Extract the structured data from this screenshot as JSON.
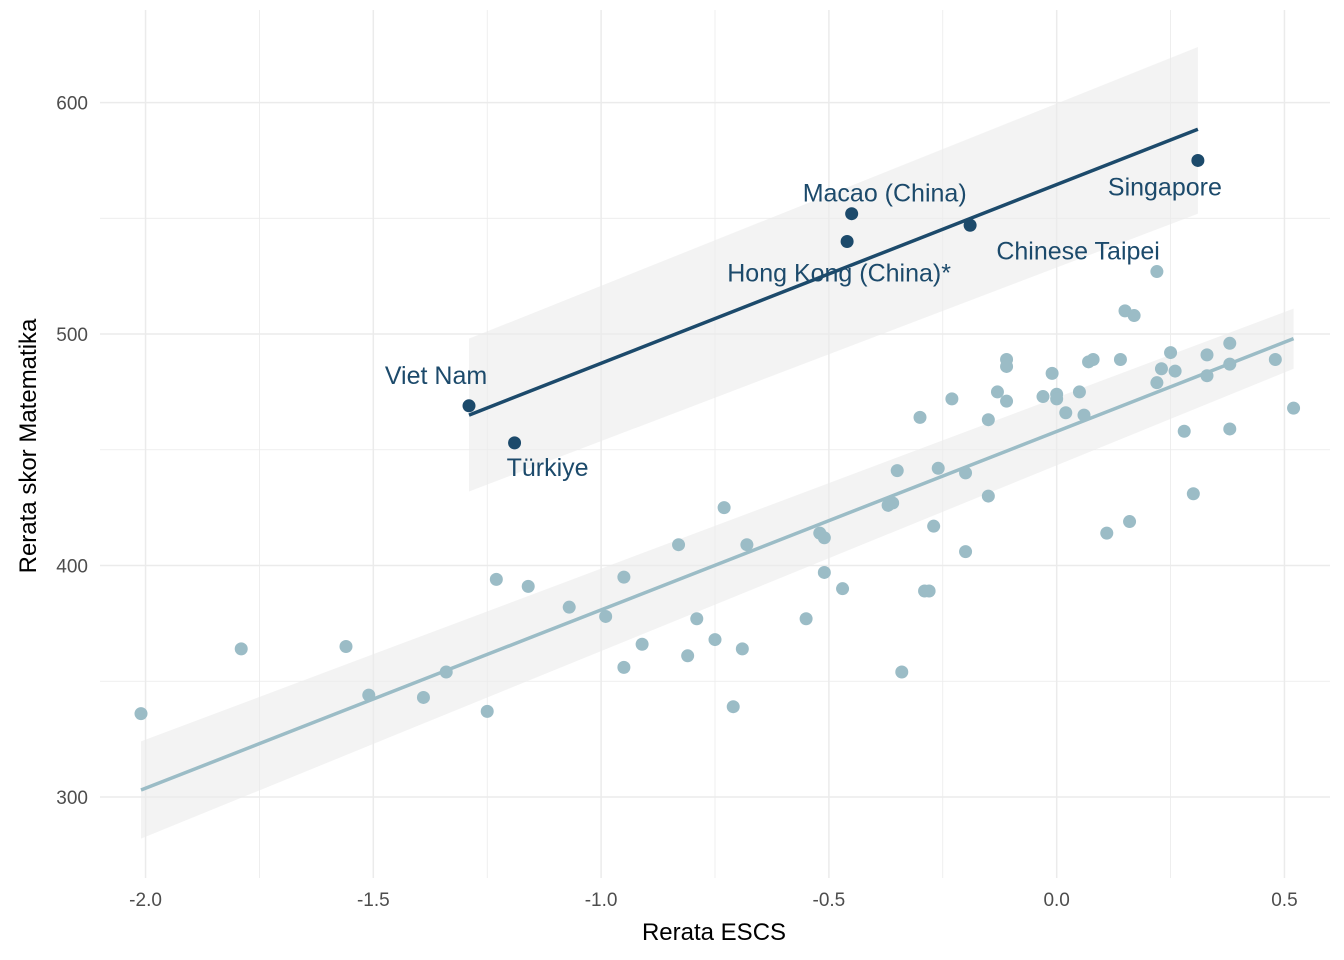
{
  "chart_data": {
    "type": "scatter",
    "xlabel": "Rerata ESCS",
    "ylabel": "Rerata skor Matematika",
    "xlim": [
      -2.1,
      0.6
    ],
    "ylim": [
      265,
      640
    ],
    "xticks": [
      -2.0,
      -1.5,
      -1.0,
      -0.5,
      0.0,
      0.5
    ],
    "xtick_labels": [
      "-2.0",
      "-1.5",
      "-1.0",
      "-0.5",
      "0.0",
      "0.5"
    ],
    "yticks": [
      300,
      400,
      500,
      600
    ],
    "ytick_labels": [
      "300",
      "400",
      "500",
      "600"
    ],
    "grid": true,
    "legend": "none",
    "colors": {
      "highlight": "#1c4a6b",
      "other": "#9bbcc6",
      "band": "#ebebeb",
      "grid": "#ebebeb"
    },
    "series": [
      {
        "color": "#1c4a6b",
        "points": [
          {
            "x": -1.29,
            "y": 469,
            "label": "Viet Nam"
          },
          {
            "x": -1.19,
            "y": 453,
            "label": "Türkiye"
          },
          {
            "x": -0.45,
            "y": 552,
            "label": "Macao (China)"
          },
          {
            "x": -0.46,
            "y": 540,
            "label": "Hong Kong (China)*"
          },
          {
            "x": -0.19,
            "y": 547,
            "label": "Chinese Taipei"
          },
          {
            "x": 0.31,
            "y": 575,
            "label": "Singapore"
          }
        ],
        "trend": {
          "x": [
            -1.29,
            0.31
          ],
          "y": [
            465,
            588.5
          ],
          "ci_lower": [
            432,
            552
          ],
          "ci_upper": [
            498,
            624
          ]
        }
      },
      {
        "color": "#9bbcc6",
        "points": [
          {
            "x": -2.01,
            "y": 336
          },
          {
            "x": -1.79,
            "y": 364
          },
          {
            "x": -1.56,
            "y": 365
          },
          {
            "x": -1.51,
            "y": 344
          },
          {
            "x": -1.39,
            "y": 343
          },
          {
            "x": -1.34,
            "y": 354
          },
          {
            "x": -1.25,
            "y": 337
          },
          {
            "x": -1.23,
            "y": 394
          },
          {
            "x": -1.16,
            "y": 391
          },
          {
            "x": -1.07,
            "y": 382
          },
          {
            "x": -0.99,
            "y": 378
          },
          {
            "x": -0.95,
            "y": 395
          },
          {
            "x": -0.95,
            "y": 356
          },
          {
            "x": -0.91,
            "y": 366
          },
          {
            "x": -0.83,
            "y": 409
          },
          {
            "x": -0.81,
            "y": 361
          },
          {
            "x": -0.79,
            "y": 377
          },
          {
            "x": -0.75,
            "y": 368
          },
          {
            "x": -0.73,
            "y": 425
          },
          {
            "x": -0.71,
            "y": 339
          },
          {
            "x": -0.69,
            "y": 364
          },
          {
            "x": -0.68,
            "y": 409
          },
          {
            "x": -0.55,
            "y": 377
          },
          {
            "x": -0.52,
            "y": 414
          },
          {
            "x": -0.51,
            "y": 412
          },
          {
            "x": -0.51,
            "y": 397
          },
          {
            "x": -0.47,
            "y": 390
          },
          {
            "x": -0.37,
            "y": 426
          },
          {
            "x": -0.36,
            "y": 427
          },
          {
            "x": -0.35,
            "y": 441
          },
          {
            "x": -0.34,
            "y": 354
          },
          {
            "x": -0.3,
            "y": 464
          },
          {
            "x": -0.29,
            "y": 389
          },
          {
            "x": -0.28,
            "y": 389
          },
          {
            "x": -0.27,
            "y": 417
          },
          {
            "x": -0.26,
            "y": 442
          },
          {
            "x": -0.23,
            "y": 472
          },
          {
            "x": -0.2,
            "y": 440
          },
          {
            "x": -0.2,
            "y": 406
          },
          {
            "x": -0.15,
            "y": 463
          },
          {
            "x": -0.15,
            "y": 430
          },
          {
            "x": -0.13,
            "y": 475
          },
          {
            "x": -0.11,
            "y": 489
          },
          {
            "x": -0.11,
            "y": 486
          },
          {
            "x": -0.11,
            "y": 471
          },
          {
            "x": -0.03,
            "y": 473
          },
          {
            "x": -0.01,
            "y": 483
          },
          {
            "x": 0.0,
            "y": 474
          },
          {
            "x": 0.0,
            "y": 472
          },
          {
            "x": 0.02,
            "y": 466
          },
          {
            "x": 0.05,
            "y": 475
          },
          {
            "x": 0.06,
            "y": 465
          },
          {
            "x": 0.07,
            "y": 488
          },
          {
            "x": 0.08,
            "y": 489
          },
          {
            "x": 0.11,
            "y": 414
          },
          {
            "x": 0.14,
            "y": 489
          },
          {
            "x": 0.15,
            "y": 510
          },
          {
            "x": 0.16,
            "y": 419
          },
          {
            "x": 0.17,
            "y": 508
          },
          {
            "x": 0.22,
            "y": 479
          },
          {
            "x": 0.23,
            "y": 485
          },
          {
            "x": 0.25,
            "y": 492
          },
          {
            "x": 0.26,
            "y": 484
          },
          {
            "x": 0.28,
            "y": 458
          },
          {
            "x": 0.3,
            "y": 431
          },
          {
            "x": 0.33,
            "y": 482
          },
          {
            "x": 0.33,
            "y": 491
          },
          {
            "x": 0.38,
            "y": 487
          },
          {
            "x": 0.38,
            "y": 496
          },
          {
            "x": 0.38,
            "y": 459
          },
          {
            "x": 0.48,
            "y": 489
          },
          {
            "x": 0.52,
            "y": 468
          },
          {
            "x": 0.22,
            "y": 527
          }
        ],
        "trend": {
          "x": [
            -2.01,
            0.52
          ],
          "y": [
            303,
            498
          ],
          "ci_lower": [
            282,
            485
          ],
          "ci_upper": [
            324,
            511
          ]
        }
      }
    ]
  }
}
